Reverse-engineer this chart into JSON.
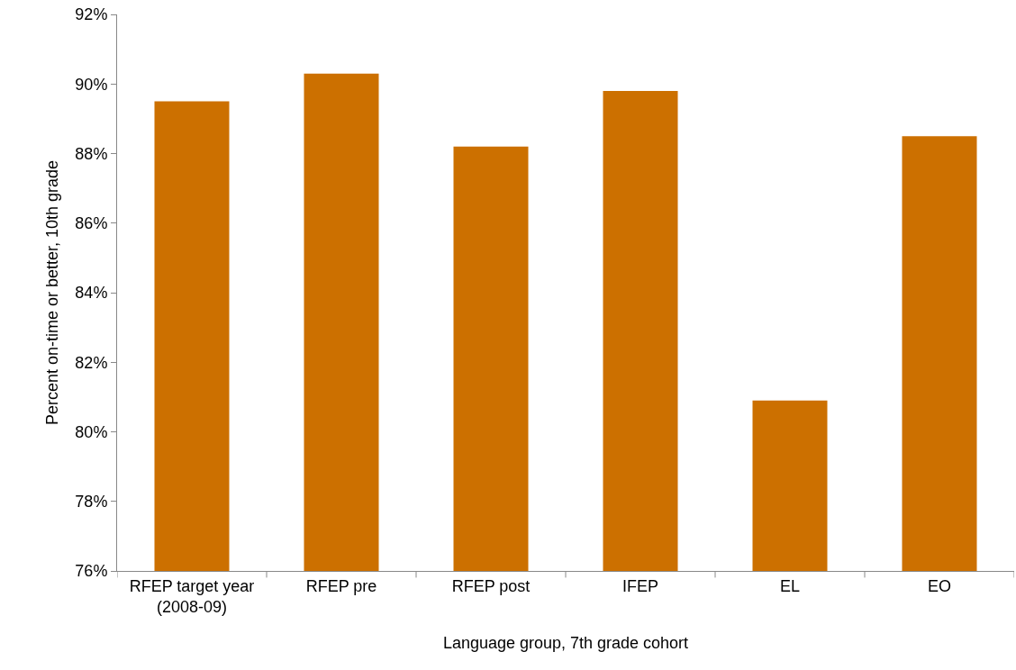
{
  "chart_data": {
    "type": "bar",
    "xlabel": "Language group, 7th grade cohort",
    "ylabel": "Percent on-time or better, 10th grade",
    "categories": [
      "RFEP target year (2008-09)",
      "RFEP pre",
      "RFEP post",
      "IFEP",
      "EL",
      "EO"
    ],
    "values": [
      89.5,
      90.3,
      88.2,
      89.8,
      80.9,
      88.5
    ],
    "color": "#cc7000",
    "ylim": [
      76,
      92
    ],
    "yticks": [
      {
        "value": 76,
        "label": "76%"
      },
      {
        "value": 78,
        "label": "78%"
      },
      {
        "value": 80,
        "label": "80%"
      },
      {
        "value": 82,
        "label": "82%"
      },
      {
        "value": 84,
        "label": "84%"
      },
      {
        "value": 86,
        "label": "86%"
      },
      {
        "value": 88,
        "label": "88%"
      },
      {
        "value": 90,
        "label": "90%"
      },
      {
        "value": 92,
        "label": "92%"
      }
    ],
    "grid": false
  }
}
